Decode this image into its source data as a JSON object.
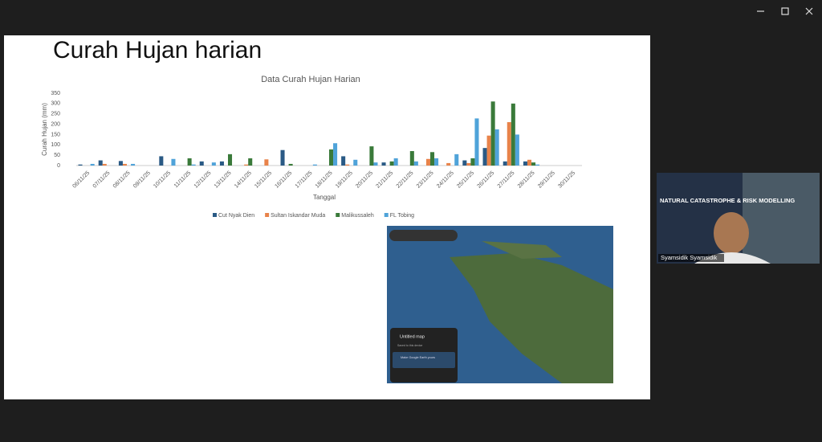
{
  "slide_title": "Curah Hujan harian",
  "chart_data": {
    "type": "bar",
    "title": "Data Curah Hujan Harian",
    "x_label": "Tanggal",
    "y_label": "Curah Hujan (mm)",
    "categories": [
      "06/11/25",
      "07/11/25",
      "08/11/25",
      "09/11/25",
      "10/11/25",
      "11/11/25",
      "12/11/25",
      "13/11/25",
      "14/11/25",
      "15/11/25",
      "16/11/25",
      "17/11/25",
      "18/11/25",
      "19/11/25",
      "20/11/25",
      "21/11/25",
      "22/11/25",
      "23/11/25",
      "24/11/25",
      "25/11/25",
      "26/11/25",
      "27/11/25",
      "28/11/25",
      "29/11/25",
      "30/11/25"
    ],
    "series": [
      {
        "name": "Cut Nyak Dien",
        "color": "#2a5a85",
        "values": [
          5,
          25,
          22,
          0,
          45,
          0,
          20,
          20,
          0,
          0,
          75,
          0,
          0,
          45,
          0,
          15,
          0,
          0,
          0,
          25,
          85,
          20,
          20,
          0,
          0
        ]
      },
      {
        "name": "Sultan Iskandar Muda",
        "color": "#e8834a",
        "values": [
          0,
          8,
          8,
          0,
          0,
          0,
          0,
          0,
          5,
          30,
          0,
          0,
          0,
          5,
          0,
          0,
          0,
          32,
          12,
          12,
          145,
          210,
          28,
          0,
          0
        ]
      },
      {
        "name": "Malikussaleh",
        "color": "#3a7a3a",
        "values": [
          0,
          0,
          0,
          0,
          0,
          35,
          0,
          55,
          35,
          0,
          8,
          0,
          78,
          0,
          93,
          20,
          70,
          65,
          0,
          35,
          310,
          300,
          15,
          0,
          0
        ]
      },
      {
        "name": "FL Tobing",
        "color": "#4fa3d9",
        "values": [
          8,
          0,
          8,
          0,
          32,
          5,
          15,
          0,
          0,
          0,
          0,
          5,
          108,
          28,
          15,
          35,
          20,
          35,
          55,
          228,
          175,
          150,
          5,
          0,
          0
        ]
      }
    ],
    "ylim": [
      0,
      350
    ],
    "yticks": [
      0,
      50,
      100,
      150,
      200,
      250,
      300,
      350
    ],
    "legend": "bottom"
  },
  "participant": {
    "name": "Syamsidik Syamsidik",
    "banner": "NATURAL CATASTROPHE & RISK MODELLING"
  },
  "map_panel": {
    "title": "Untitled map",
    "saved": "Saved to this device",
    "promo": "Make Google Earth yours"
  }
}
